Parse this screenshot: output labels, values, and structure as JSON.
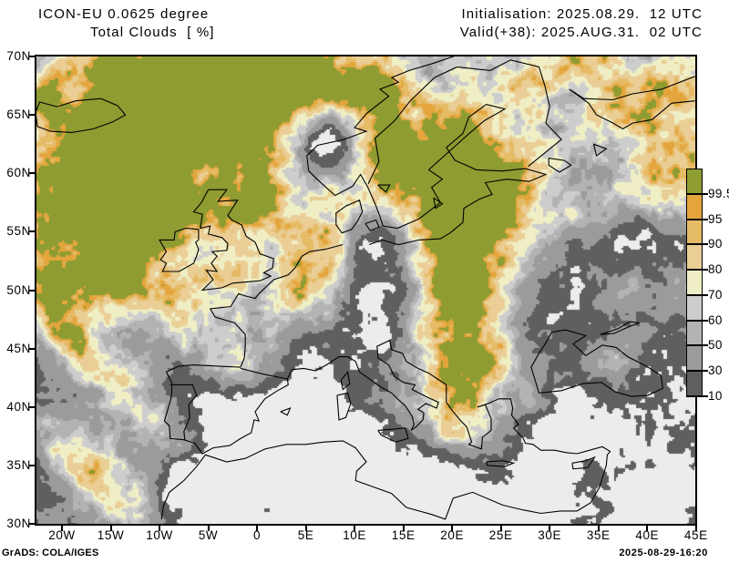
{
  "header": {
    "model_line": "ICON-EU 0.0625 degree",
    "variable_line": "Total Clouds  [ %]",
    "init_line": "Initialisation: 2025.08.29.  12 UTC",
    "valid_line": "Valid(+38): 2025.AUG.31.  02 UTC"
  },
  "map": {
    "lat_ticks": [
      "70N",
      "65N",
      "60N",
      "55N",
      "50N",
      "45N",
      "40N",
      "35N",
      "30N"
    ],
    "lon_ticks": [
      "20W",
      "15W",
      "10W",
      "5W",
      "0",
      "5E",
      "10E",
      "15E",
      "20E",
      "25E",
      "30E",
      "35E",
      "40E",
      "45E"
    ]
  },
  "colorbar": {
    "labels": [
      "99.5",
      "95",
      "90",
      "80",
      "70",
      "60",
      "50",
      "30",
      "10"
    ],
    "segments": [
      {
        "range": "> 99.5",
        "color": "#8e9c31"
      },
      {
        "range": "95 - 99.5",
        "color": "#e4a53d"
      },
      {
        "range": "90 - 95",
        "color": "#e6bb66"
      },
      {
        "range": "80 - 90",
        "color": "#eace96"
      },
      {
        "range": "70 - 80",
        "color": "#efeec5"
      },
      {
        "range": "60 - 70",
        "color": "#cdcdcd"
      },
      {
        "range": "50 - 60",
        "color": "#b3b3b3"
      },
      {
        "range": "30 - 50",
        "color": "#9b9b9b"
      },
      {
        "range": "10 - 30",
        "color": "#5f5f5f"
      }
    ],
    "background_color": "#ececec",
    "unit": "%"
  },
  "footer": {
    "credit": "GrADS: COLA/IGES",
    "created": "2025-08-29-16:20"
  }
}
